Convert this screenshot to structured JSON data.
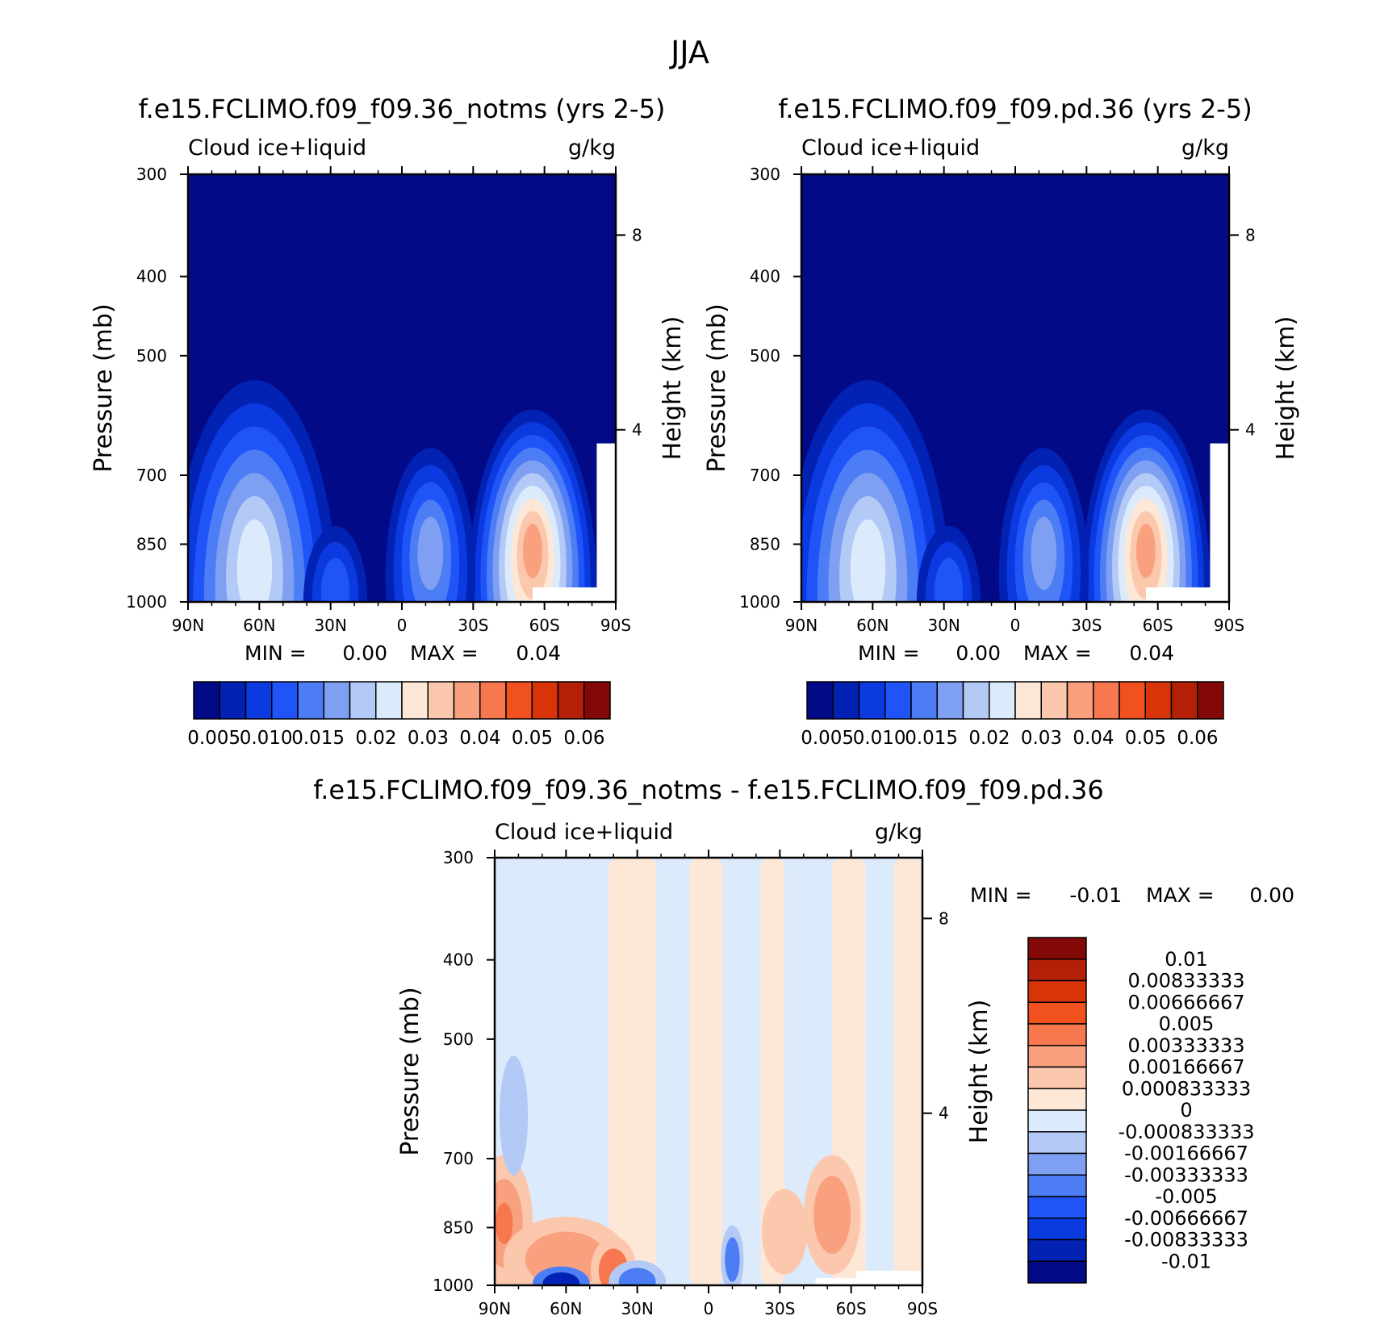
{
  "figure": {
    "title": "JJA"
  },
  "chart_data": [
    {
      "id": "p1",
      "type": "heatmap",
      "title": "f.e15.FCLIMO.f09_f09.36_notms (yrs 2-5)",
      "left_label": "Cloud ice+liquid",
      "right_label": "g/kg",
      "ylabel": "Pressure (mb)",
      "y2label": "Height (km)",
      "xticks": [
        "90N",
        "60N",
        "30N",
        "0",
        "30S",
        "60S",
        "90S"
      ],
      "yticks": [
        "300",
        "400",
        "500",
        "700",
        "850",
        "1000"
      ],
      "y2ticks": [
        "8",
        "4"
      ],
      "ylim": [
        1000,
        300
      ],
      "stats": {
        "min_label": "MIN =",
        "min": "0.00",
        "max_label": "MAX =",
        "max": "0.04"
      },
      "colorbar": {
        "colors": [
          "#020a88",
          "#0222b4",
          "#0b3ae0",
          "#1f55f8",
          "#4d7df5",
          "#7e9ff2",
          "#b3c9f6",
          "#dcebfc",
          "#fde7d6",
          "#fbc7ad",
          "#f9a07f",
          "#f7774e",
          "#f0511f",
          "#d8340a",
          "#b41f08",
          "#830808"
        ],
        "labels": [
          "0.005",
          "0.010",
          "0.015",
          "0.02",
          "0.03",
          "0.04",
          "0.05",
          "0.06"
        ]
      }
    },
    {
      "id": "p2",
      "type": "heatmap",
      "title": "f.e15.FCLIMO.f09_f09.pd.36 (yrs 2-5)",
      "left_label": "Cloud ice+liquid",
      "right_label": "g/kg",
      "ylabel": "Pressure (mb)",
      "y2label": "Height (km)",
      "xticks": [
        "90N",
        "60N",
        "30N",
        "0",
        "30S",
        "60S",
        "90S"
      ],
      "yticks": [
        "300",
        "400",
        "500",
        "700",
        "850",
        "1000"
      ],
      "y2ticks": [
        "8",
        "4"
      ],
      "ylim": [
        1000,
        300
      ],
      "stats": {
        "min_label": "MIN =",
        "min": "0.00",
        "max_label": "MAX =",
        "max": "0.04"
      },
      "colorbar": {
        "colors": [
          "#020a88",
          "#0222b4",
          "#0b3ae0",
          "#1f55f8",
          "#4d7df5",
          "#7e9ff2",
          "#b3c9f6",
          "#dcebfc",
          "#fde7d6",
          "#fbc7ad",
          "#f9a07f",
          "#f7774e",
          "#f0511f",
          "#d8340a",
          "#b41f08",
          "#830808"
        ],
        "labels": [
          "0.005",
          "0.010",
          "0.015",
          "0.02",
          "0.03",
          "0.04",
          "0.05",
          "0.06"
        ]
      }
    },
    {
      "id": "p3",
      "type": "heatmap",
      "title": "f.e15.FCLIMO.f09_f09.36_notms - f.e15.FCLIMO.f09_f09.pd.36",
      "left_label": "Cloud ice+liquid",
      "right_label": "g/kg",
      "ylabel": "Pressure (mb)",
      "y2label": "Height (km)",
      "xticks": [
        "90N",
        "60N",
        "30N",
        "0",
        "30S",
        "60S",
        "90S"
      ],
      "yticks": [
        "300",
        "400",
        "500",
        "700",
        "850",
        "1000"
      ],
      "y2ticks": [
        "8",
        "4"
      ],
      "ylim": [
        1000,
        300
      ],
      "stats": {
        "min_label": "MIN =",
        "min": "-0.01",
        "max_label": "MAX =",
        "max": "0.00"
      },
      "colorbar": {
        "colors": [
          "#830808",
          "#b41f08",
          "#d8340a",
          "#f0511f",
          "#f7774e",
          "#f9a07f",
          "#fbc7ad",
          "#fde7d6",
          "#dcebfc",
          "#b3c9f6",
          "#7e9ff2",
          "#4d7df5",
          "#1f55f8",
          "#0b3ae0",
          "#0222b4",
          "#020a88"
        ],
        "labels": [
          "0.01",
          "0.00833333",
          "0.00666667",
          "0.005",
          "0.00333333",
          "0.00166667",
          "0.000833333",
          "0",
          "-0.000833333",
          "-0.00166667",
          "-0.00333333",
          "-0.005",
          "-0.00666667",
          "-0.00833333",
          "-0.01"
        ]
      }
    }
  ]
}
